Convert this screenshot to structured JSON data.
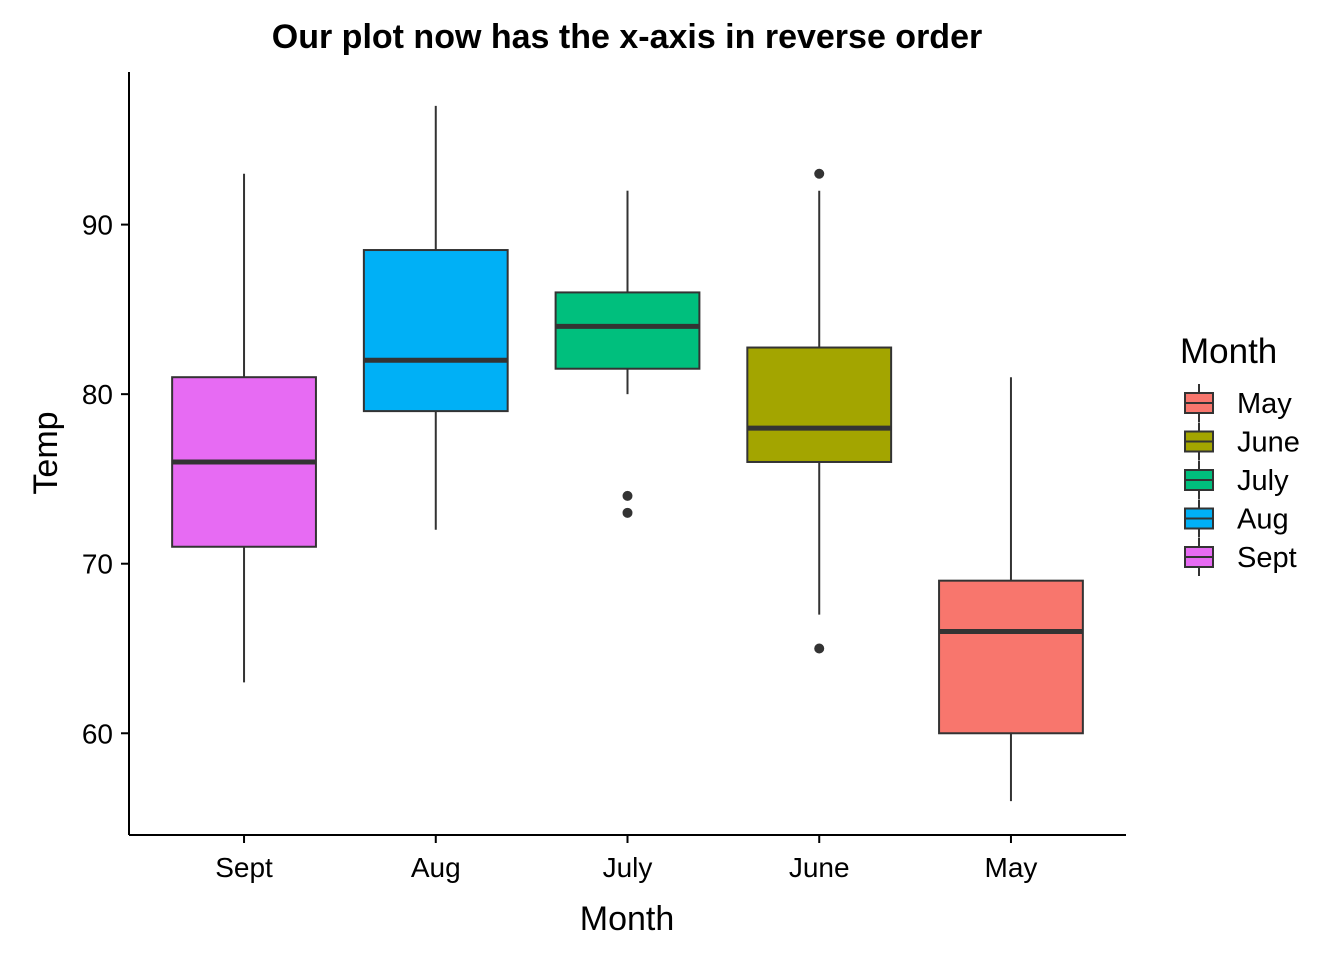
{
  "chart_data": {
    "type": "boxplot",
    "title": "Our plot now has the x-axis in reverse order",
    "xlabel": "Month",
    "ylabel": "Temp",
    "ylim": [
      54,
      99
    ],
    "yticks": [
      60,
      70,
      80,
      90
    ],
    "grid": false,
    "legend_position": "right",
    "categories": [
      "Sept",
      "Aug",
      "July",
      "June",
      "May"
    ],
    "boxes": [
      {
        "category": "Sept",
        "min": 63,
        "q1": 71,
        "median": 76,
        "q3": 81,
        "max": 93,
        "outliers": [],
        "color": "#E76BF3"
      },
      {
        "category": "Aug",
        "min": 72,
        "q1": 79,
        "median": 82,
        "q3": 88.5,
        "max": 97,
        "outliers": [],
        "color": "#00B0F6"
      },
      {
        "category": "July",
        "min": 80,
        "q1": 81.5,
        "median": 84,
        "q3": 86,
        "max": 92,
        "outliers": [
          73,
          74
        ],
        "color": "#00BF7D"
      },
      {
        "category": "June",
        "min": 67,
        "q1": 76,
        "median": 78,
        "q3": 82.75,
        "max": 92,
        "outliers": [
          65,
          93
        ],
        "color": "#A3A500"
      },
      {
        "category": "May",
        "min": 56,
        "q1": 60,
        "median": 66,
        "q3": 69,
        "max": 81,
        "outliers": [],
        "color": "#F8766D"
      }
    ],
    "legend": {
      "title": "Month",
      "entries": [
        {
          "label": "May",
          "color": "#F8766D"
        },
        {
          "label": "June",
          "color": "#A3A500"
        },
        {
          "label": "July",
          "color": "#00BF7D"
        },
        {
          "label": "Aug",
          "color": "#00B0F6"
        },
        {
          "label": "Sept",
          "color": "#E76BF3"
        }
      ]
    }
  }
}
